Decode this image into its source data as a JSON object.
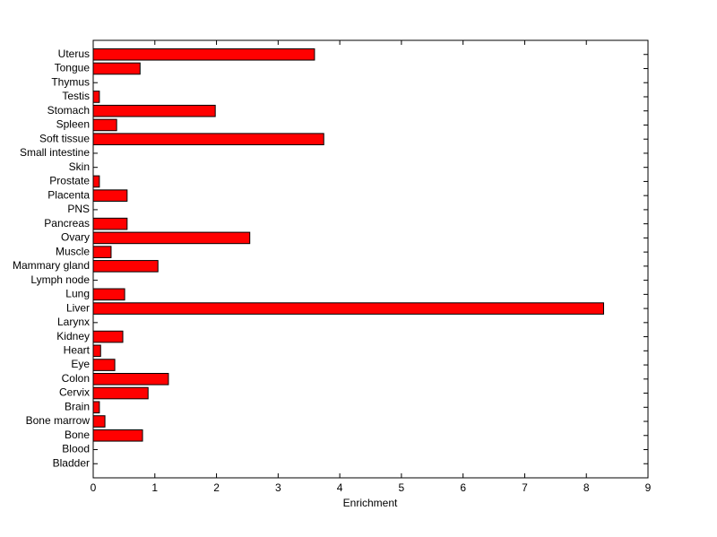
{
  "chart_data": {
    "type": "bar",
    "orientation": "horizontal",
    "xlabel": "Enrichment",
    "categories": [
      "Bladder",
      "Blood",
      "Bone",
      "Bone marrow",
      "Brain",
      "Cervix",
      "Colon",
      "Eye",
      "Heart",
      "Kidney",
      "Larynx",
      "Liver",
      "Lung",
      "Lymph node",
      "Mammary gland",
      "Muscle",
      "Ovary",
      "Pancreas",
      "PNS",
      "Placenta",
      "Prostate",
      "Skin",
      "Small intestine",
      "Soft tissue",
      "Spleen",
      "Stomach",
      "Testis",
      "Thymus",
      "Tongue",
      "Uterus"
    ],
    "values": [
      0,
      0,
      0.8,
      0.19,
      0.1,
      0.89,
      1.22,
      0.35,
      0.12,
      0.48,
      0,
      8.28,
      0.51,
      0,
      1.05,
      0.29,
      2.54,
      0.55,
      0,
      0.55,
      0.1,
      0,
      0,
      3.74,
      0.38,
      1.98,
      0.1,
      0,
      0.76,
      3.59
    ],
    "color": "#ff0000",
    "xlim": [
      0,
      9
    ],
    "xticks": [
      0,
      1,
      2,
      3,
      4,
      5,
      6,
      7,
      8,
      9
    ]
  }
}
